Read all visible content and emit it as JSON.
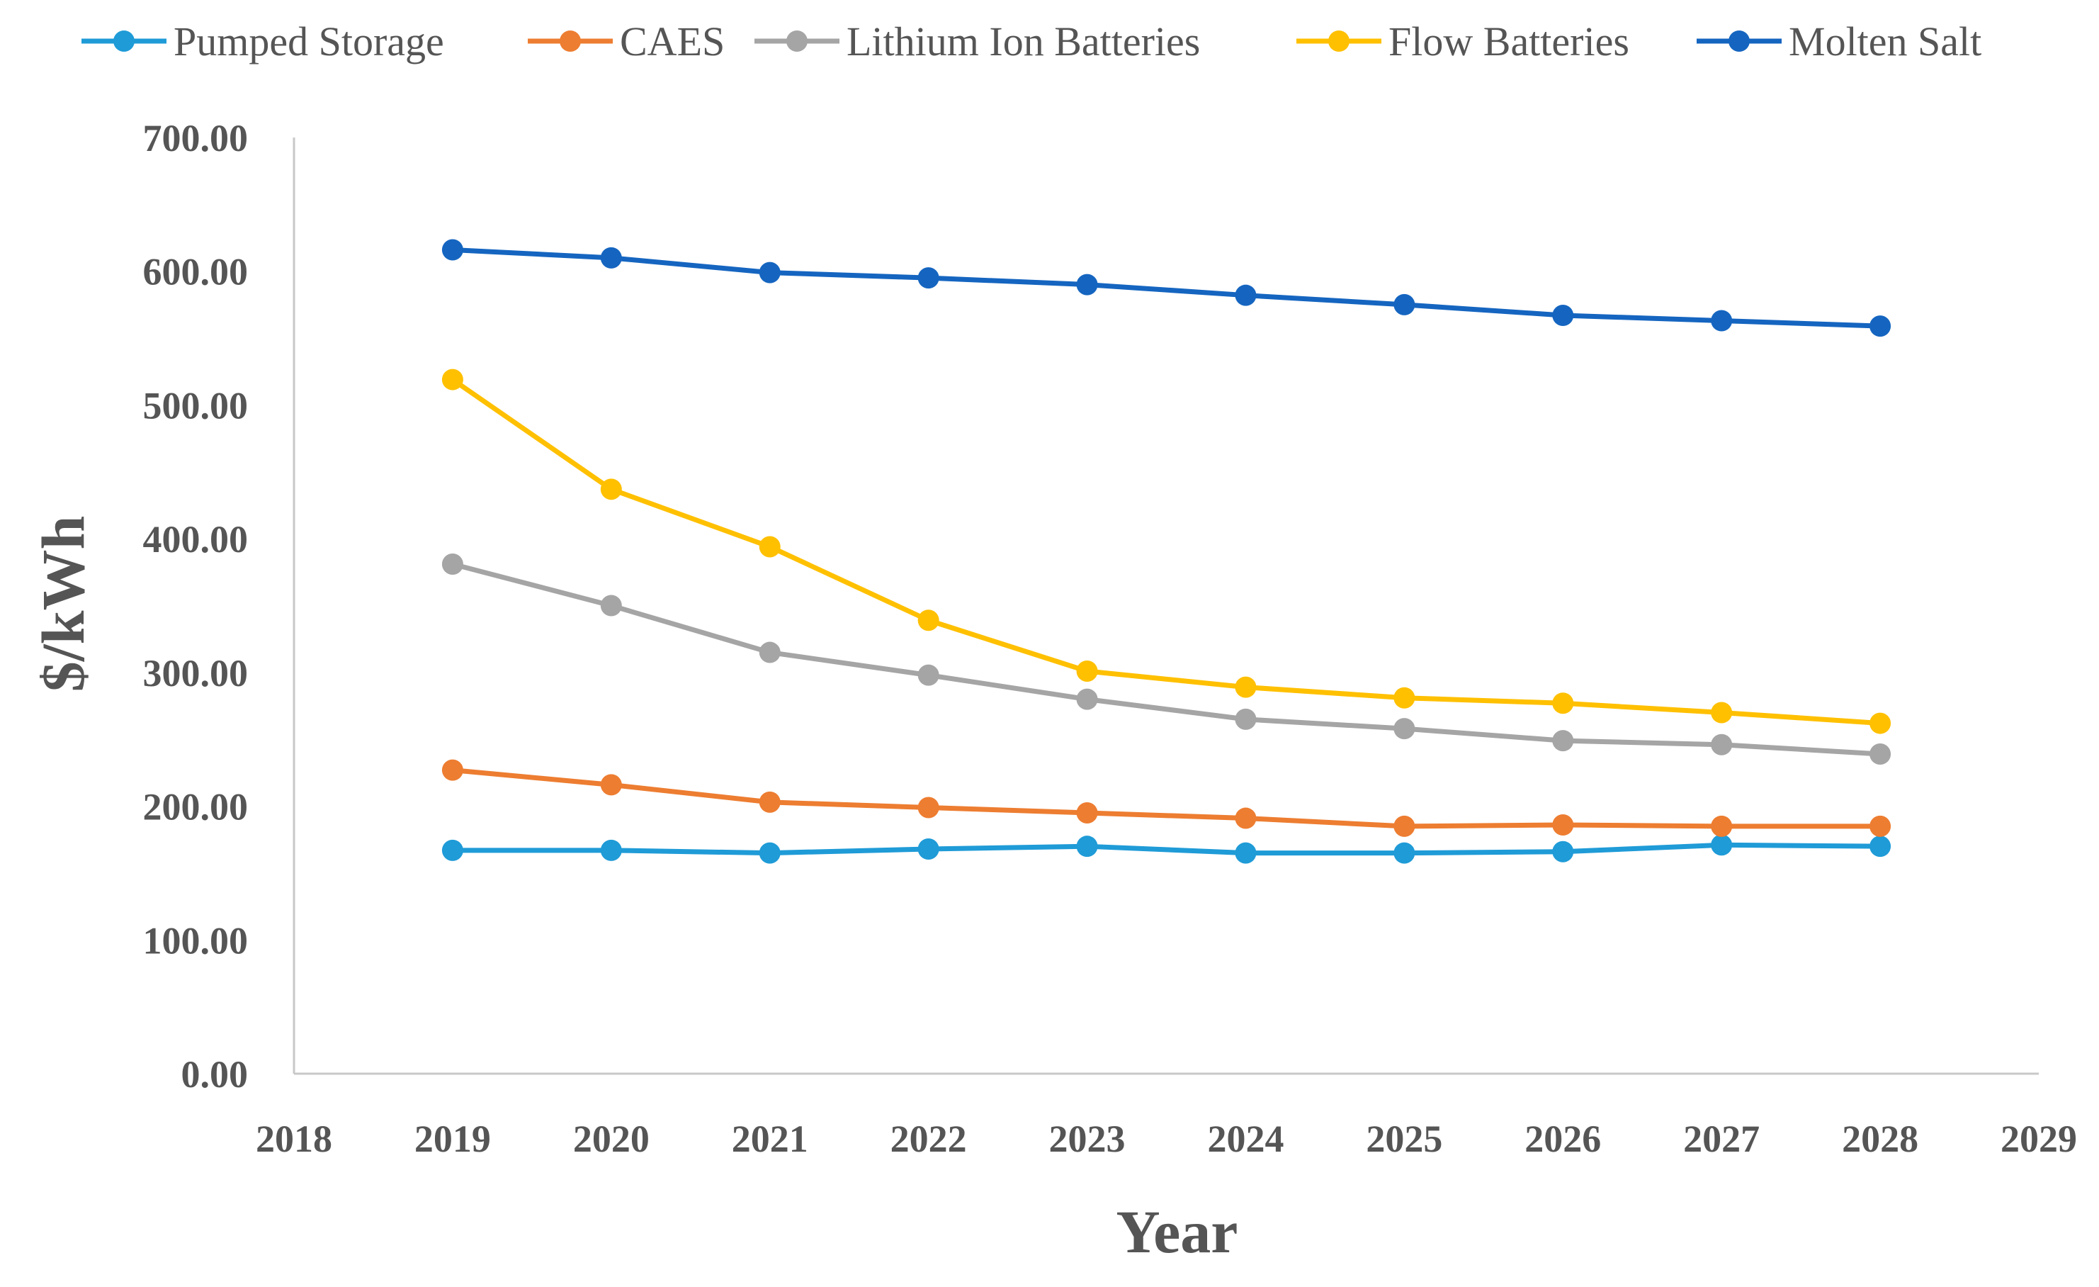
{
  "chart_data": {
    "type": "line",
    "title": "",
    "xlabel": "Year",
    "ylabel": "$/kWh",
    "xlim": [
      2018,
      2029
    ],
    "ylim": [
      0,
      700
    ],
    "x_ticks": [
      "2018",
      "2019",
      "2020",
      "2021",
      "2022",
      "2023",
      "2024",
      "2025",
      "2026",
      "2027",
      "2028",
      "2029"
    ],
    "y_ticks": [
      "0.00",
      "100.00",
      "200.00",
      "300.00",
      "400.00",
      "500.00",
      "600.00",
      "700.00"
    ],
    "grid": false,
    "legend_position": "top",
    "x": [
      2019,
      2020,
      2021,
      2022,
      2023,
      2024,
      2025,
      2026,
      2027,
      2028
    ],
    "series": [
      {
        "name": "Pumped Storage",
        "color": "#1f9bd7",
        "values": [
          167,
          167,
          165,
          168,
          170,
          165,
          165,
          166,
          171,
          170
        ]
      },
      {
        "name": "CAES",
        "color": "#ed7d31",
        "values": [
          227,
          216,
          203,
          199,
          195,
          191,
          185,
          186,
          185,
          185
        ]
      },
      {
        "name": "Lithium Ion Batteries",
        "color": "#a5a5a5",
        "values": [
          381,
          350,
          315,
          298,
          280,
          265,
          258,
          249,
          246,
          239
        ]
      },
      {
        "name": "Flow Batteries",
        "color": "#ffc000",
        "values": [
          519,
          437,
          394,
          339,
          301,
          289,
          281,
          277,
          270,
          262
        ]
      },
      {
        "name": "Molten Salt",
        "color": "#1565c0",
        "values": [
          616,
          610,
          599,
          595,
          590,
          582,
          575,
          567,
          563,
          559
        ]
      }
    ]
  }
}
